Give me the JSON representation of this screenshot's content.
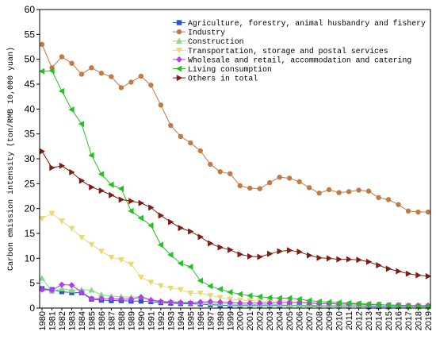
{
  "chart_data": {
    "type": "line",
    "title": "",
    "xlabel": "",
    "ylabel": "Carbon emission intensity (ton/RMB 10,000 yuan)",
    "ylim": [
      0,
      60
    ],
    "yticks": [
      0,
      5,
      10,
      15,
      20,
      25,
      30,
      35,
      40,
      45,
      50,
      55,
      60
    ],
    "grid": false,
    "legend": "top-right",
    "x": [
      1980,
      1981,
      1982,
      1983,
      1984,
      1985,
      1986,
      1987,
      1988,
      1989,
      1990,
      1991,
      1992,
      1993,
      1994,
      1995,
      1996,
      1997,
      1998,
      1999,
      2000,
      2001,
      2002,
      2003,
      2004,
      2005,
      2006,
      2007,
      2008,
      2009,
      2010,
      2011,
      2012,
      2013,
      2014,
      2015,
      2016,
      2017,
      2018,
      2019
    ],
    "series": [
      {
        "name": "Agriculture, forestry, animal husbandry and fishery",
        "color": "#2a52d6",
        "marker": "square",
        "values": [
          3.9,
          3.7,
          3.3,
          3.1,
          3.1,
          1.8,
          1.6,
          1.5,
          1.5,
          1.4,
          1.4,
          1.3,
          1.1,
          1.0,
          0.9,
          0.9,
          0.8,
          0.7,
          0.6,
          0.5,
          0.5,
          0.5,
          0.5,
          0.5,
          0.5,
          0.5,
          0.5,
          0.4,
          0.4,
          0.4,
          0.4,
          0.4,
          0.4,
          0.3,
          0.3,
          0.3,
          0.3,
          0.3,
          0.3,
          0.3
        ]
      },
      {
        "name": "Industry",
        "color": "#c27a45",
        "marker": "circle",
        "values": [
          53,
          48.3,
          50.5,
          49.2,
          47,
          48.3,
          47.2,
          46.5,
          44.3,
          45.4,
          46.6,
          44.8,
          40.8,
          36.7,
          34.5,
          33.2,
          31.6,
          28.9,
          27.4,
          27,
          24.6,
          24.1,
          24,
          25.2,
          26.3,
          26.1,
          25.4,
          24.2,
          23.1,
          23.8,
          23.2,
          23.4,
          23.7,
          23.5,
          22.2,
          21.8,
          20.8,
          19.5,
          19.3,
          19.3
        ]
      },
      {
        "name": "Construction",
        "color": "#86dc86",
        "marker": "triangle-up",
        "values": [
          6.0,
          3.4,
          3.9,
          3.6,
          3.7,
          3.6,
          2.7,
          2.4,
          2.3,
          2.2,
          2.3,
          1.7,
          1.4,
          1.3,
          1.2,
          1.1,
          1.1,
          1.0,
          0.9,
          0.8,
          0.7,
          0.7,
          0.7,
          0.7,
          0.7,
          0.6,
          0.6,
          0.6,
          0.5,
          0.5,
          0.5,
          0.5,
          0.5,
          0.5,
          0.4,
          0.4,
          0.4,
          0.3,
          0.3,
          0.3
        ]
      },
      {
        "name": "Transportation, storage and postal services",
        "color": "#e6da78",
        "marker": "triangle-down",
        "values": [
          18.0,
          19.0,
          17.5,
          16.0,
          14.2,
          12.8,
          11.4,
          10.2,
          9.7,
          8.8,
          6.2,
          5.2,
          4.5,
          4.0,
          3.7,
          3.0,
          3.0,
          2.5,
          2.1,
          1.8,
          1.6,
          1.5,
          1.4,
          1.4,
          1.4,
          1.3,
          1.2,
          1.1,
          1.0,
          0.9,
          0.9,
          0.8,
          0.8,
          0.7,
          0.7,
          0.6,
          0.6,
          0.5,
          0.5,
          0.4
        ]
      },
      {
        "name": "Wholesale and retail, accommodation and catering",
        "color": "#b23fe6",
        "marker": "diamond",
        "values": [
          3.7,
          3.6,
          4.7,
          4.6,
          3.2,
          1.9,
          1.9,
          1.9,
          1.8,
          1.8,
          2.2,
          1.6,
          1.3,
          1.2,
          1.1,
          1.0,
          1.2,
          1.3,
          1.2,
          1.1,
          1.0,
          1.0,
          1.0,
          1.0,
          1.1,
          1.1,
          1.1,
          1.0,
          0.9,
          0.9,
          0.8,
          0.8,
          0.8,
          0.7,
          0.7,
          0.6,
          0.6,
          0.5,
          0.5,
          0.5
        ]
      },
      {
        "name": "Living consumption",
        "color": "#26c026",
        "marker": "triangle-left",
        "values": [
          47.6,
          47.7,
          43.6,
          39.9,
          37,
          30.7,
          26.9,
          24.8,
          24.0,
          19.5,
          18.1,
          16.6,
          12.7,
          10.7,
          9.0,
          8.3,
          5.5,
          4.4,
          3.8,
          3.2,
          2.8,
          2.5,
          2.3,
          2.1,
          2.0,
          2.0,
          1.8,
          1.5,
          1.3,
          1.2,
          1.1,
          1.0,
          0.9,
          0.8,
          0.7,
          0.6,
          0.5,
          0.4,
          0.3,
          0.3
        ]
      },
      {
        "name": "Others in total",
        "color": "#7a1f12",
        "marker": "triangle-right",
        "values": [
          31.5,
          28.2,
          28.6,
          27.3,
          25.6,
          24.3,
          23.6,
          22.7,
          21.8,
          21.5,
          21.1,
          20.2,
          18.6,
          17.3,
          16.1,
          15.4,
          14.3,
          13.0,
          12.2,
          11.7,
          10.8,
          10.4,
          10.3,
          10.9,
          11.4,
          11.6,
          11.3,
          10.6,
          10.1,
          10.0,
          9.8,
          9.8,
          9.7,
          9.3,
          8.6,
          7.9,
          7.4,
          6.9,
          6.6,
          6.4
        ]
      }
    ]
  }
}
